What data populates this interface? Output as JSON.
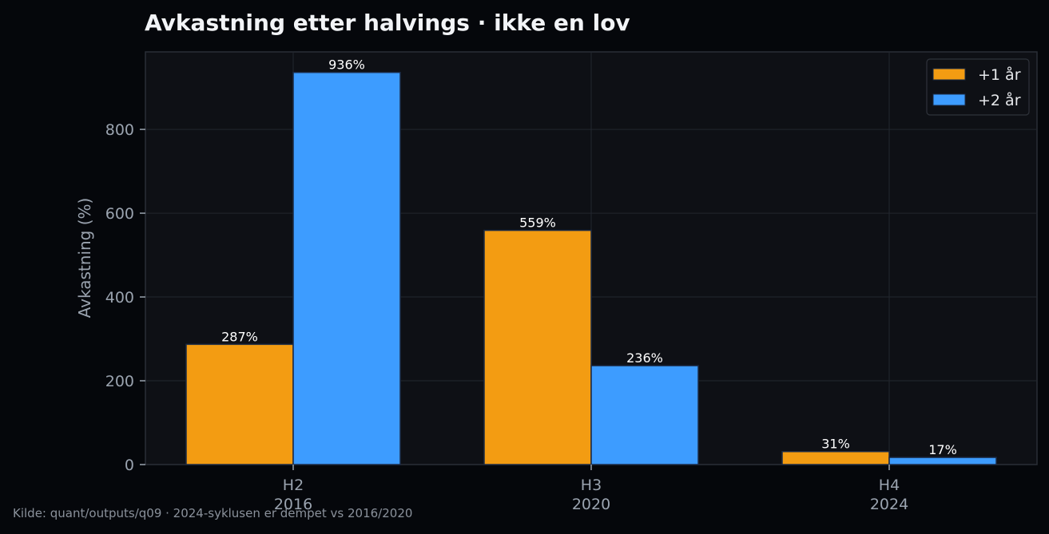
{
  "chart_data": {
    "type": "bar",
    "title": "Avkastning etter halvings · ikke en lov",
    "ylabel": "Avkastning (%)",
    "xlabel": "",
    "ylim": [
      0,
      985
    ],
    "yticks": [
      0,
      200,
      400,
      600,
      800
    ],
    "categories": [
      "H2",
      "H3",
      "H4"
    ],
    "category_years": [
      "2016",
      "2020",
      "2024"
    ],
    "series": [
      {
        "name": "+1 år",
        "color": "#f39c12",
        "values": [
          287,
          559,
          31
        ]
      },
      {
        "name": "+2 år",
        "color": "#3d9cff",
        "values": [
          936,
          236,
          17
        ]
      }
    ],
    "value_suffix": "%",
    "grid": true,
    "legend_position": "top-right"
  },
  "colors": {
    "background": "#05070b",
    "plot_background": "#0e1015",
    "grid": "#23272f",
    "bar_edge": "#1b2a44"
  },
  "source_note": "Kilde: quant/outputs/q09 · 2024-syklusen er dempet vs 2016/2020"
}
